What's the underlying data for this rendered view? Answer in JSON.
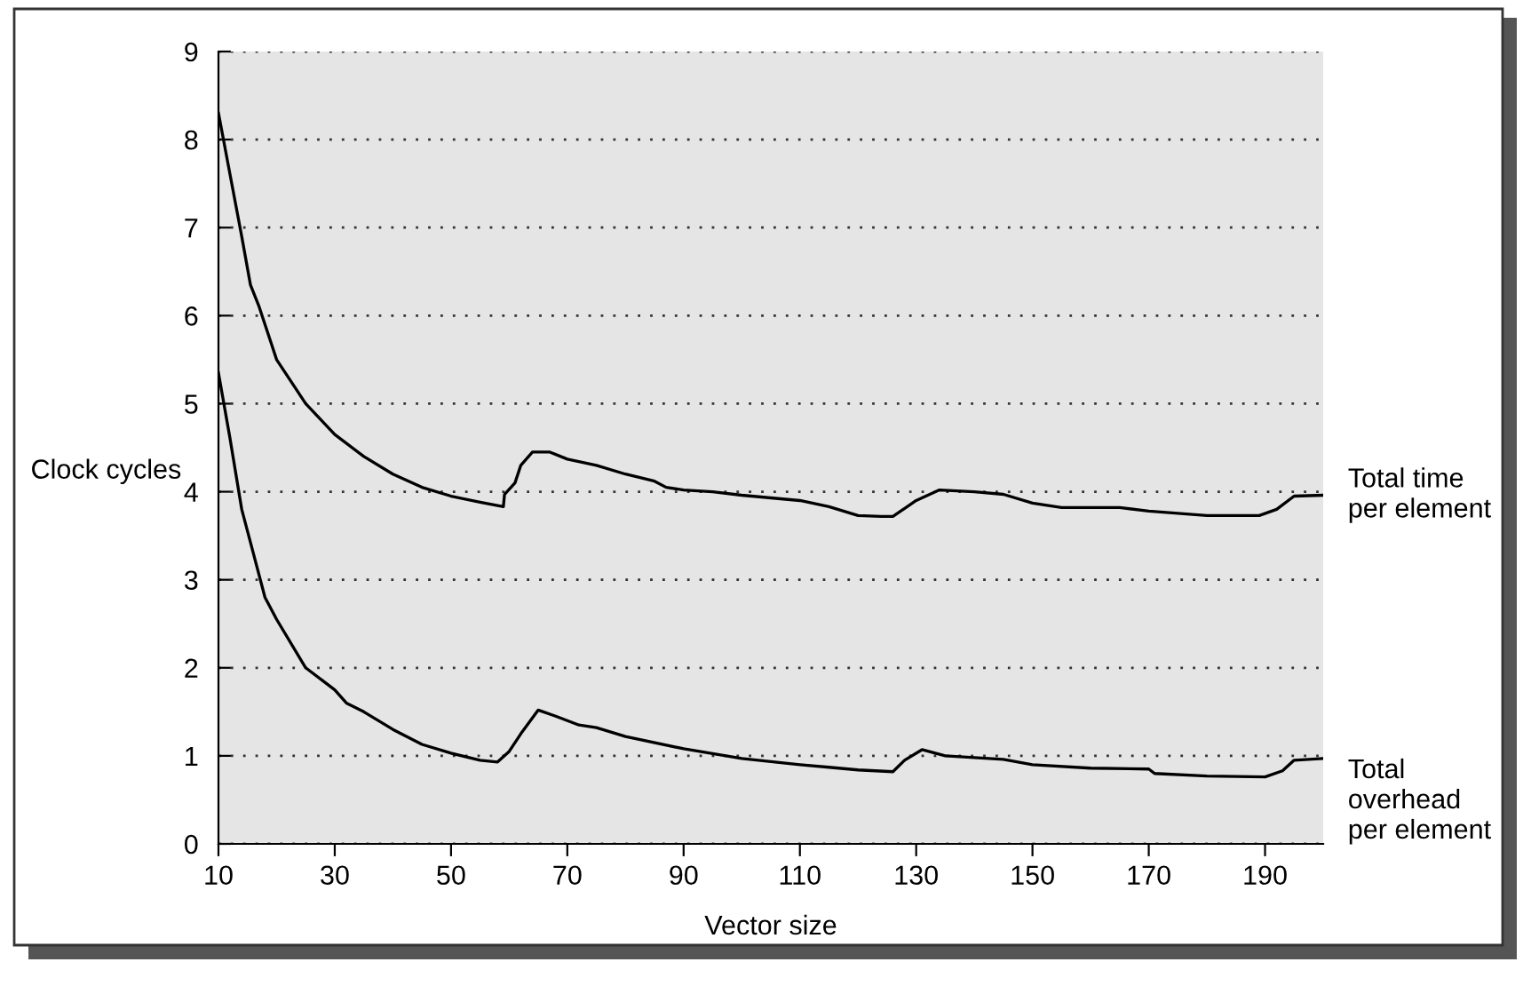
{
  "chart_data": {
    "type": "line",
    "xlabel": "Vector size",
    "ylabel": "Clock cycles",
    "xlim": [
      10,
      200
    ],
    "xticks": [
      10,
      30,
      50,
      70,
      90,
      110,
      130,
      150,
      170,
      190
    ],
    "ylim": [
      0,
      9
    ],
    "yticks": [
      0,
      1,
      2,
      3,
      4,
      5,
      6,
      7,
      8,
      9
    ],
    "grid": "y",
    "legend": false,
    "marker": "none",
    "line_style": "solid",
    "series": [
      {
        "name": "Total time\nper element",
        "color": "#000000",
        "x": [
          10,
          12,
          14,
          15.5,
          17,
          19,
          20,
          25,
          30,
          35,
          40,
          45,
          50,
          55,
          59,
          59.2,
          61,
          62,
          64,
          67,
          70,
          75,
          80,
          85,
          87,
          90,
          95,
          100,
          110,
          115,
          120,
          124,
          126,
          130,
          134,
          140,
          145,
          150,
          155,
          165,
          170,
          180,
          189,
          192,
          195,
          200
        ],
        "values": [
          8.3,
          7.6,
          6.9,
          6.35,
          6.1,
          5.7,
          5.5,
          5.0,
          4.65,
          4.4,
          4.2,
          4.05,
          3.95,
          3.88,
          3.83,
          3.97,
          4.1,
          4.3,
          4.45,
          4.45,
          4.37,
          4.3,
          4.2,
          4.12,
          4.05,
          4.02,
          4.0,
          3.96,
          3.9,
          3.83,
          3.73,
          3.72,
          3.72,
          3.9,
          4.02,
          4.0,
          3.97,
          3.87,
          3.82,
          3.82,
          3.78,
          3.73,
          3.73,
          3.8,
          3.95,
          3.96
        ]
      },
      {
        "name": "Total\noverhead\nper element",
        "color": "#000000",
        "x": [
          10,
          12,
          14,
          16,
          18,
          20,
          25,
          28,
          30,
          32,
          35,
          40,
          45,
          50,
          55,
          58,
          60,
          62,
          65,
          68,
          72,
          75,
          80,
          90,
          100,
          110,
          115,
          120,
          126,
          128,
          131,
          135,
          145,
          150,
          160,
          170,
          171,
          180,
          190,
          193,
          195,
          200
        ],
        "values": [
          5.35,
          4.6,
          3.8,
          3.3,
          2.8,
          2.55,
          2.0,
          1.85,
          1.75,
          1.6,
          1.5,
          1.3,
          1.13,
          1.03,
          0.95,
          0.93,
          1.05,
          1.25,
          1.52,
          1.45,
          1.35,
          1.32,
          1.22,
          1.08,
          0.97,
          0.9,
          0.87,
          0.84,
          0.82,
          0.95,
          1.07,
          1.0,
          0.96,
          0.9,
          0.86,
          0.85,
          0.8,
          0.77,
          0.76,
          0.83,
          0.95,
          0.97
        ]
      }
    ]
  }
}
